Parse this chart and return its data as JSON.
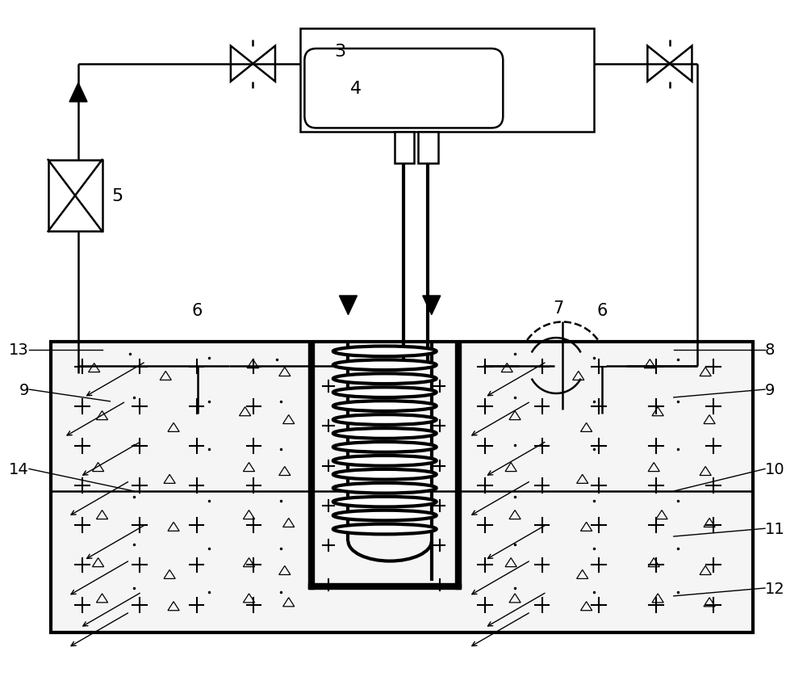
{
  "bg_color": "#ffffff",
  "line_color": "#000000",
  "figsize": [
    10.0,
    8.54
  ],
  "dpi": 100
}
